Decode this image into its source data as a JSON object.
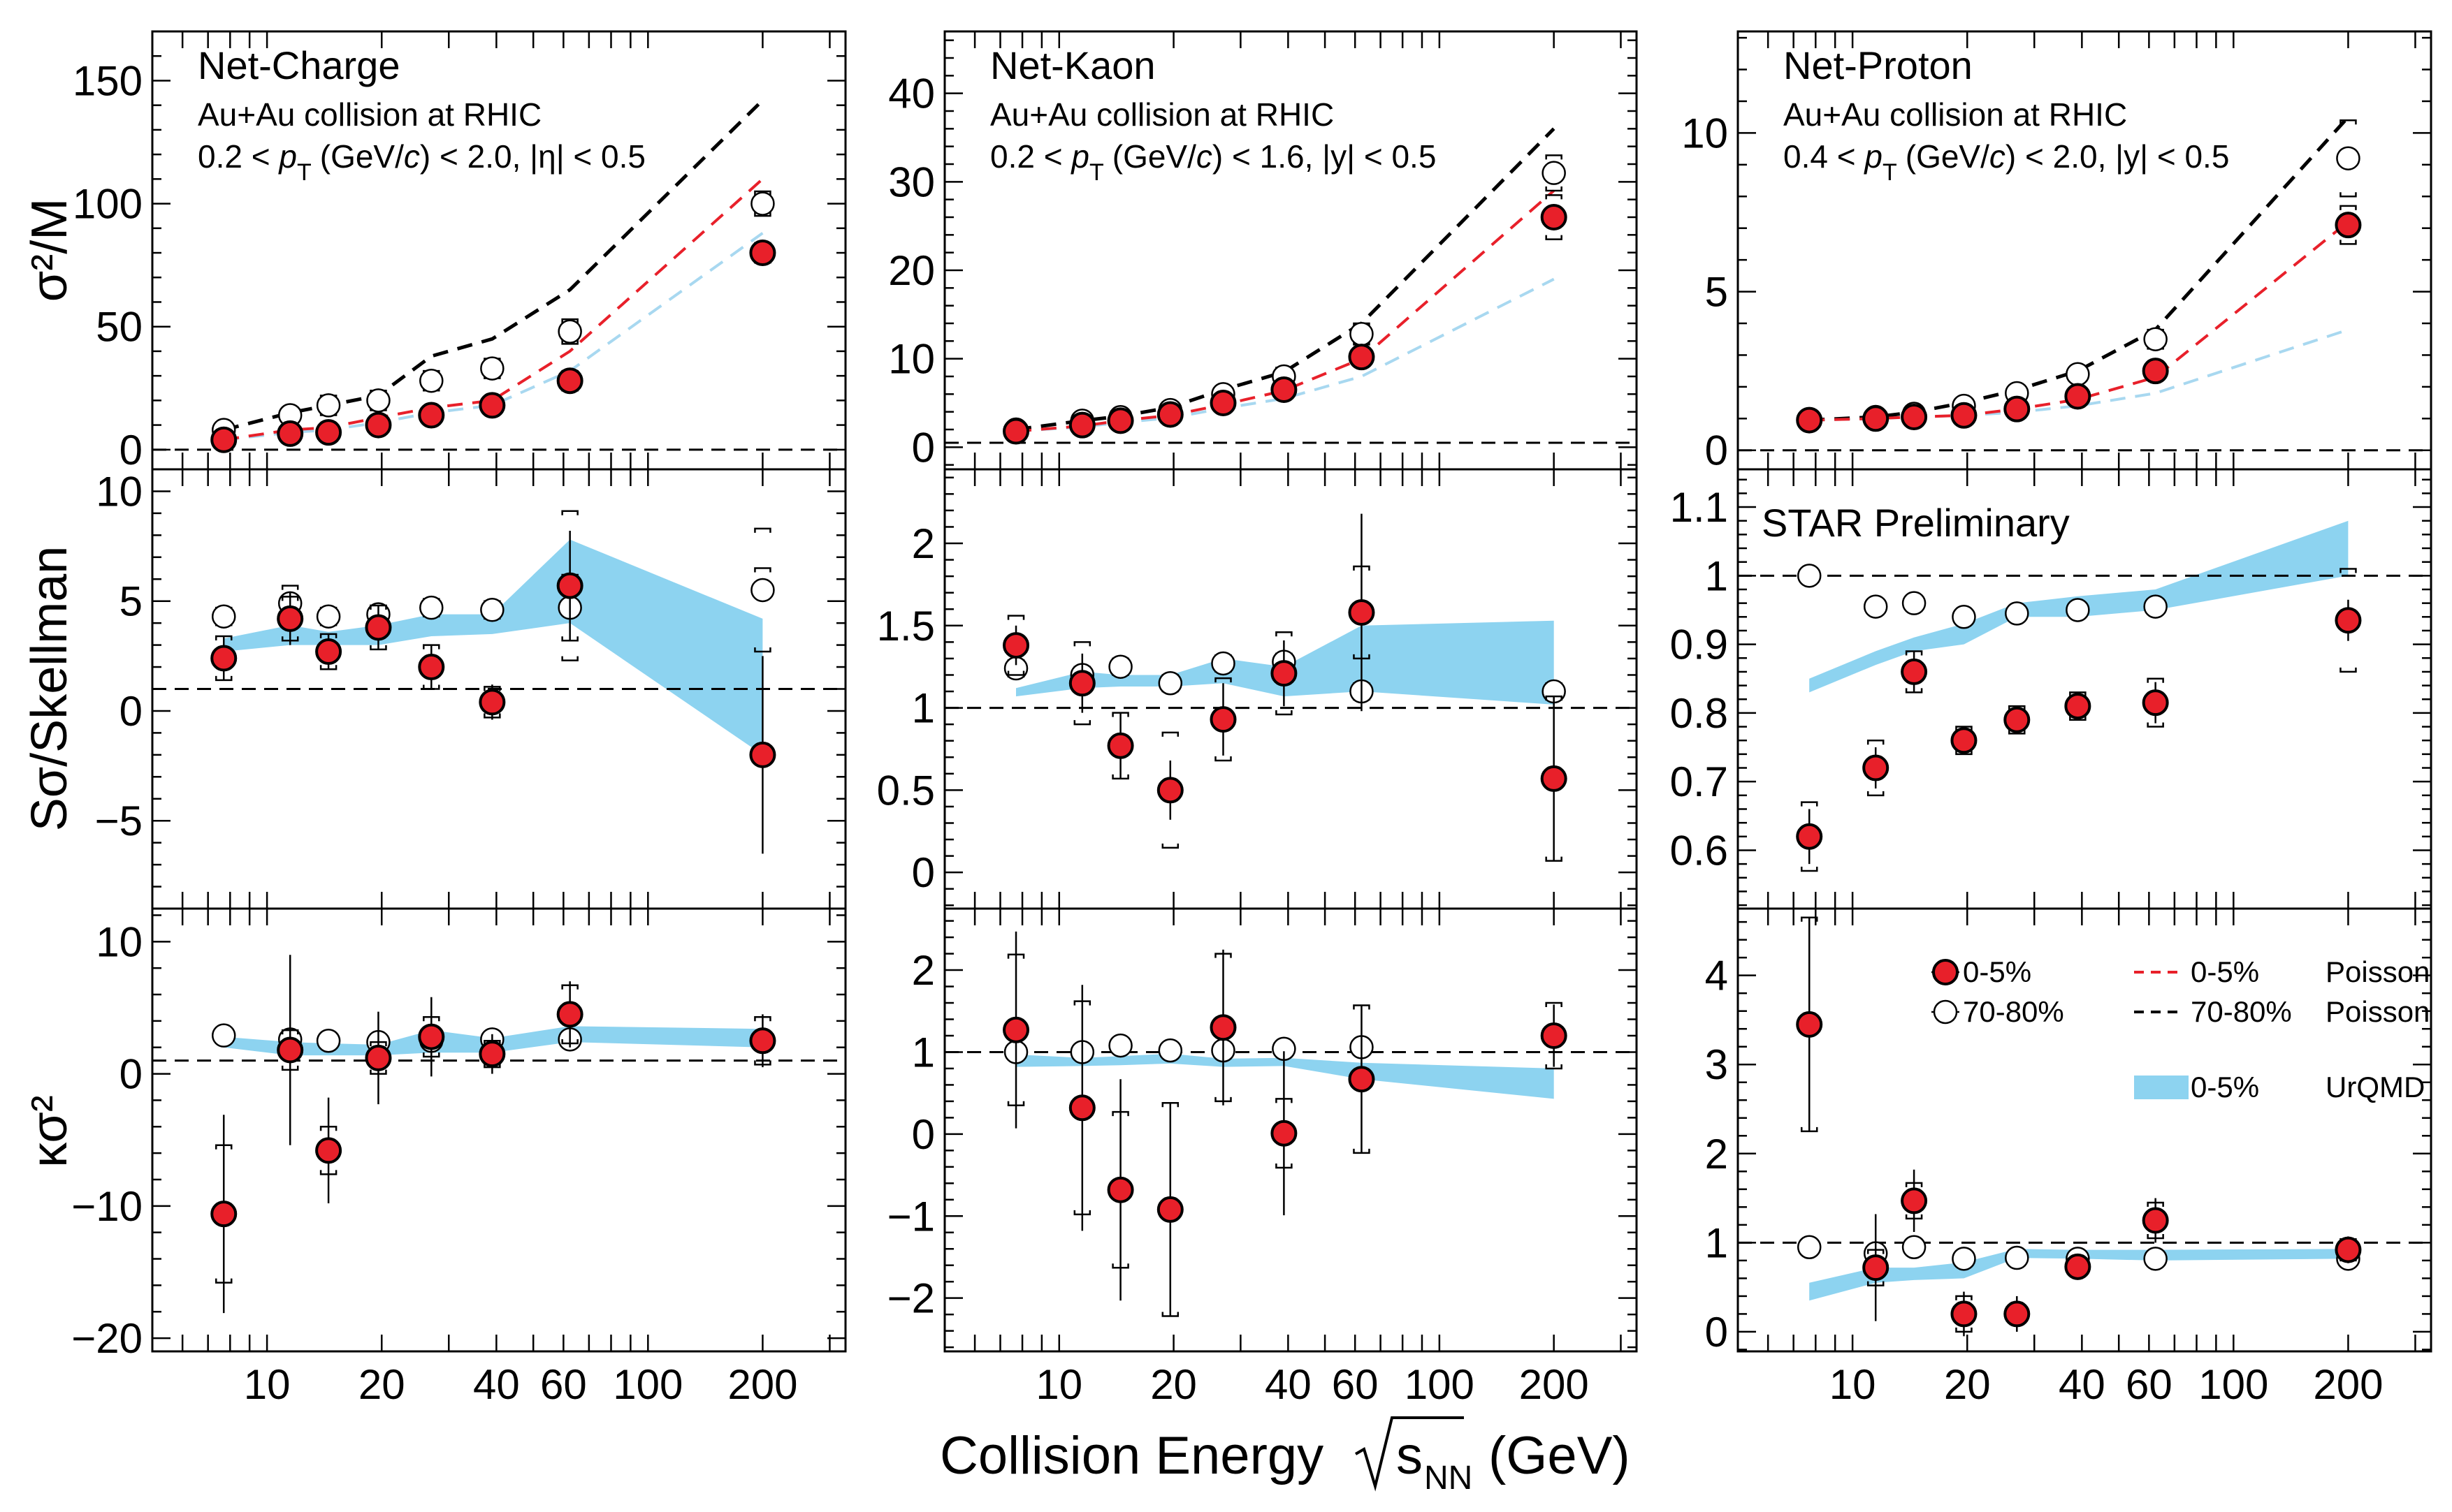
{
  "figure": {
    "xlabel": "Collision Energy",
    "xlabel_sqrt": "s",
    "xlabel_sub": "NN",
    "xlabel_unit": "(GeV)",
    "preliminary": "STAR Preliminary"
  },
  "colors": {
    "central_marker": "#e8202a",
    "poisson_central": "#e8202a",
    "poisson_peripheral": "#000000",
    "poisson_urqmd_light": "#a8d8f0",
    "urqmd_band": "#8dd3f0"
  },
  "legend": {
    "entries": [
      {
        "label": "0-5%",
        "type": "central"
      },
      {
        "label": "70-80%",
        "type": "peripheral"
      },
      {
        "label": "0-5%",
        "type": "urqmd_band",
        "model": "UrQMD"
      },
      {
        "label": "0-5%",
        "type": "poisson_central",
        "model": "Poisson"
      },
      {
        "label": "70-80%",
        "type": "poisson_peripheral",
        "model": "Poisson"
      }
    ]
  },
  "chart_data": {
    "type": "scatter",
    "x_scale": "log",
    "energies": [
      7.7,
      11.5,
      14.5,
      19.6,
      27,
      39,
      62.4,
      200
    ],
    "x_ticks": [
      10,
      20,
      40,
      60,
      100,
      200
    ],
    "xlim": [
      5,
      330
    ],
    "columns": [
      {
        "title": "Net-Charge",
        "line1": "Au+Au collision at RHIC",
        "line2a": "0.2 < ",
        "line2b": "(GeV/",
        "line2c": ") < 2.0, |η| < 0.5"
      },
      {
        "title": "Net-Kaon",
        "line1": "Au+Au collision at RHIC",
        "line2a": "0.2 < ",
        "line2b": "(GeV/",
        "line2c": ") < 1.6, |y| < 0.5"
      },
      {
        "title": "Net-Proton",
        "line1": "Au+Au collision at RHIC",
        "line2a": "0.4 < ",
        "line2b": "(GeV/",
        "line2c": ") < 2.0, |y| < 0.5"
      }
    ],
    "pt_symbol": "p",
    "pt_sub": "T",
    "c_symbol": "c",
    "rows": [
      {
        "ylabel": "σ²/M"
      },
      {
        "ylabel": "Sσ/Skellman"
      },
      {
        "ylabel": "κσ²"
      }
    ],
    "panels": [
      {
        "row": 0,
        "col": 0,
        "ylim": [
          -8,
          170
        ],
        "yticks": [
          0,
          50,
          100,
          150
        ],
        "ref": 0,
        "central": [
          4,
          6.5,
          7,
          10,
          14,
          18,
          28,
          80
        ],
        "central_err": [
          1,
          1,
          1,
          1,
          1,
          2,
          2,
          3
        ],
        "central_sys": [
          2,
          2,
          2,
          2,
          3,
          3,
          4,
          4
        ],
        "peripheral": [
          8,
          14,
          18,
          20,
          28,
          33,
          48,
          100
        ],
        "peripheral_sys": [
          2,
          3,
          4,
          4,
          4,
          4,
          5,
          5
        ],
        "poisson_central": [
          4,
          8,
          9,
          13,
          17,
          20,
          40,
          110
        ],
        "poisson_peripheral": [
          8,
          15,
          18,
          22,
          38,
          45,
          65,
          142
        ],
        "poisson_urqmd": [
          4,
          7,
          8,
          11,
          15,
          18,
          32,
          88
        ],
        "band": null
      },
      {
        "row": 0,
        "col": 1,
        "ylim": [
          -2.5,
          47
        ],
        "yticks": [
          0,
          10,
          20,
          30,
          40
        ],
        "ref": 0.5,
        "central": [
          1.8,
          2.5,
          3,
          3.7,
          5,
          6.5,
          10.2,
          26
        ],
        "central_err": [
          0.3,
          0.3,
          0.3,
          0.3,
          0.4,
          0.5,
          0.6,
          1
        ],
        "central_sys": [
          0.6,
          0.6,
          0.6,
          0.7,
          0.8,
          0.9,
          1,
          2.5
        ],
        "peripheral": [
          2,
          3,
          3.4,
          4.2,
          6,
          8,
          12.8,
          31
        ],
        "peripheral_sys": [
          0.5,
          0.6,
          0.6,
          0.7,
          0.8,
          1,
          1.2,
          2
        ],
        "poisson_central": [
          1.8,
          2.4,
          3,
          3.6,
          4.8,
          6.4,
          10,
          29
        ],
        "poisson_peripheral": [
          2,
          3,
          3.5,
          4.5,
          6.5,
          8.5,
          14,
          36
        ],
        "poisson_urqmd": [
          1.8,
          2.3,
          2.8,
          3.3,
          4.4,
          5.5,
          8,
          19
        ],
        "band": null
      },
      {
        "row": 0,
        "col": 2,
        "ylim": [
          -0.6,
          13.2
        ],
        "yticks": [
          0,
          5,
          10
        ],
        "ref": 0,
        "central": [
          0.95,
          1,
          1.05,
          1.1,
          1.3,
          1.7,
          2.5,
          7.1
        ],
        "central_err": [
          0.05,
          0.05,
          0.05,
          0.05,
          0.06,
          0.08,
          0.1,
          0.2
        ],
        "central_sys": [
          0.1,
          0.1,
          0.1,
          0.1,
          0.12,
          0.15,
          0.2,
          0.6
        ],
        "peripheral": [
          0.95,
          1.05,
          1.15,
          1.4,
          1.8,
          2.4,
          3.5,
          9.2
        ],
        "peripheral_sys": [
          0.1,
          0.1,
          0.12,
          0.15,
          0.2,
          0.2,
          0.3,
          1.2
        ],
        "poisson_central": [
          0.95,
          1,
          1.05,
          1.1,
          1.3,
          1.6,
          2.3,
          7.2
        ],
        "poisson_peripheral": [
          0.95,
          1.05,
          1.2,
          1.5,
          1.9,
          2.5,
          3.8,
          10.5
        ],
        "poisson_urqmd": [
          0.95,
          1,
          1.05,
          1.1,
          1.2,
          1.4,
          1.8,
          3.8
        ],
        "band": null
      },
      {
        "row": 1,
        "col": 0,
        "ylim": [
          -9,
          11
        ],
        "yticks": [
          -5,
          0,
          5,
          10
        ],
        "ref": 1,
        "central": [
          2.4,
          4.2,
          2.7,
          3.8,
          2.0,
          0.4,
          5.7,
          -2.0
        ],
        "central_err": [
          1.0,
          1.2,
          0.8,
          1.0,
          1.0,
          0.8,
          2.5,
          4.5
        ],
        "central_sys": [
          1.0,
          1.0,
          0.8,
          1.0,
          1.0,
          0.7,
          3.4,
          8.5
        ],
        "peripheral": [
          4.3,
          4.9,
          4.3,
          4.4,
          4.7,
          4.6,
          4.7,
          5.5
        ],
        "peripheral_sys": [
          0.4,
          0.8,
          0.4,
          0.4,
          0.4,
          0.4,
          1.5,
          2.8
        ],
        "band": [
          [
            2.7,
            3.3
          ],
          [
            3.0,
            3.9
          ],
          [
            3.0,
            3.6
          ],
          [
            3.0,
            3.9
          ],
          [
            3.4,
            4.4
          ],
          [
            3.5,
            4.4
          ],
          [
            4.0,
            7.8
          ],
          [
            -2.0,
            4.2
          ]
        ]
      },
      {
        "row": 1,
        "col": 1,
        "ylim": [
          -0.22,
          2.45
        ],
        "yticks": [
          0,
          0.5,
          1,
          1.5,
          2
        ],
        "ref": 1,
        "central": [
          1.38,
          1.15,
          0.77,
          0.5,
          0.93,
          1.21,
          1.58,
          0.57
        ],
        "central_err": [
          0.12,
          0.18,
          0.2,
          0.18,
          0.22,
          0.2,
          0.6,
          0.5
        ],
        "central_sys": [
          0.18,
          0.25,
          0.2,
          0.35,
          0.25,
          0.25,
          0.28,
          0.5
        ],
        "peripheral": [
          1.24,
          1.2,
          1.25,
          1.15,
          1.27,
          1.28,
          1.1,
          1.1
        ],
        "peripheral_sys": [
          0.05,
          0.05,
          0.05,
          0.05,
          0.05,
          0.05,
          0.05,
          0.05
        ],
        "band": [
          [
            1.07,
            1.12
          ],
          [
            1.12,
            1.22
          ],
          [
            1.13,
            1.2
          ],
          [
            1.13,
            1.2
          ],
          [
            1.15,
            1.3
          ],
          [
            1.07,
            1.25
          ],
          [
            1.1,
            1.5
          ],
          [
            1.02,
            1.53
          ]
        ]
      },
      {
        "row": 1,
        "col": 2,
        "ylim": [
          0.515,
          1.155
        ],
        "yticks": [
          0.6,
          0.7,
          0.8,
          0.9,
          1,
          1.1
        ],
        "ref": 1,
        "central": [
          0.62,
          0.72,
          0.86,
          0.76,
          0.79,
          0.81,
          0.815,
          0.935
        ],
        "central_err": [
          0.04,
          0.03,
          0.03,
          0.02,
          0.02,
          0.02,
          0.03,
          0.03
        ],
        "central_sys": [
          0.05,
          0.04,
          0.03,
          0.02,
          0.02,
          0.02,
          0.035,
          0.075
        ],
        "peripheral": [
          1.0,
          0.955,
          0.96,
          0.94,
          0.945,
          0.95,
          0.955,
          null
        ],
        "peripheral_sys": [
          0.01,
          0.01,
          0.01,
          0.01,
          0.01,
          0.01,
          0.01,
          0.01
        ],
        "band": [
          [
            0.83,
            0.85
          ],
          [
            0.87,
            0.89
          ],
          [
            0.89,
            0.91
          ],
          [
            0.9,
            0.93
          ],
          [
            0.94,
            0.96
          ],
          [
            0.94,
            0.97
          ],
          [
            0.95,
            0.98
          ],
          [
            1.0,
            1.08
          ]
        ]
      },
      {
        "row": 2,
        "col": 0,
        "ylim": [
          -21,
          12.5
        ],
        "yticks": [
          -20,
          -10,
          0,
          10
        ],
        "ref": 1,
        "central": [
          -10.6,
          1.8,
          -5.8,
          1.2,
          2.8,
          1.5,
          4.5,
          2.5
        ],
        "central_err": [
          7.5,
          7.2,
          4.0,
          3.5,
          3.0,
          1.5,
          2.5,
          2.0
        ],
        "central_sys": [
          5.2,
          1.5,
          1.8,
          1.2,
          1.5,
          1.0,
          2.2,
          1.8
        ],
        "peripheral": [
          2.9,
          2.6,
          2.5,
          2.4,
          2.5,
          2.6,
          2.6,
          2.6
        ],
        "peripheral_sys": [
          0.3,
          0.4,
          0.3,
          0.3,
          0.3,
          0.3,
          0.4,
          0.4
        ],
        "band": [
          [
            2.0,
            2.8
          ],
          [
            1.4,
            2.4
          ],
          [
            1.4,
            2.3
          ],
          [
            1.4,
            2.2
          ],
          [
            1.6,
            3.3
          ],
          [
            1.6,
            2.7
          ],
          [
            2.4,
            3.6
          ],
          [
            2.0,
            3.4
          ]
        ]
      },
      {
        "row": 2,
        "col": 1,
        "ylim": [
          -2.65,
          2.75
        ],
        "yticks": [
          -2,
          -1,
          0,
          1,
          2
        ],
        "ref": 1,
        "central": [
          1.27,
          0.32,
          -0.68,
          -0.92,
          1.3,
          0.01,
          0.67,
          1.2
        ],
        "central_err": [
          1.2,
          1.5,
          1.35,
          1.3,
          0.95,
          1.0,
          0.9,
          0.38
        ],
        "central_sys": [
          0.92,
          1.3,
          0.95,
          1.3,
          0.9,
          0.42,
          0.9,
          0.4
        ],
        "peripheral": [
          1.0,
          1.0,
          1.08,
          1.02,
          1.02,
          1.04,
          1.06,
          null
        ],
        "peripheral_sys": [
          0.05,
          0.05,
          0.05,
          0.05,
          0.05,
          0.05,
          0.05,
          0.05
        ],
        "band": [
          [
            0.82,
            0.97
          ],
          [
            0.83,
            0.93
          ],
          [
            0.84,
            0.95
          ],
          [
            0.86,
            0.98
          ],
          [
            0.82,
            0.92
          ],
          [
            0.83,
            0.93
          ],
          [
            0.67,
            0.87
          ],
          [
            0.43,
            0.8
          ]
        ]
      },
      {
        "row": 2,
        "col": 2,
        "ylim": [
          -0.22,
          4.75
        ],
        "yticks": [
          0,
          1,
          2,
          3,
          4
        ],
        "ref": 1,
        "central": [
          3.45,
          0.72,
          1.47,
          0.2,
          0.2,
          0.73,
          1.25,
          0.92
        ],
        "central_err": [
          1.2,
          0.6,
          0.35,
          0.25,
          0.2,
          0.12,
          0.25,
          0.15
        ],
        "central_sys": [
          1.2,
          0.2,
          0.2,
          0.2,
          0.08,
          0.05,
          0.2,
          0.12
        ],
        "peripheral": [
          0.95,
          0.88,
          0.95,
          0.82,
          0.83,
          0.82,
          0.82,
          0.82
        ],
        "peripheral_sys": [
          0.05,
          0.05,
          0.05,
          0.05,
          0.05,
          0.05,
          0.05,
          0.05
        ],
        "band": [
          [
            0.35,
            0.55
          ],
          [
            0.55,
            0.72
          ],
          [
            0.58,
            0.72
          ],
          [
            0.6,
            0.78
          ],
          [
            0.83,
            0.93
          ],
          [
            0.82,
            0.92
          ],
          [
            0.8,
            0.92
          ],
          [
            0.82,
            0.93
          ]
        ]
      }
    ]
  }
}
